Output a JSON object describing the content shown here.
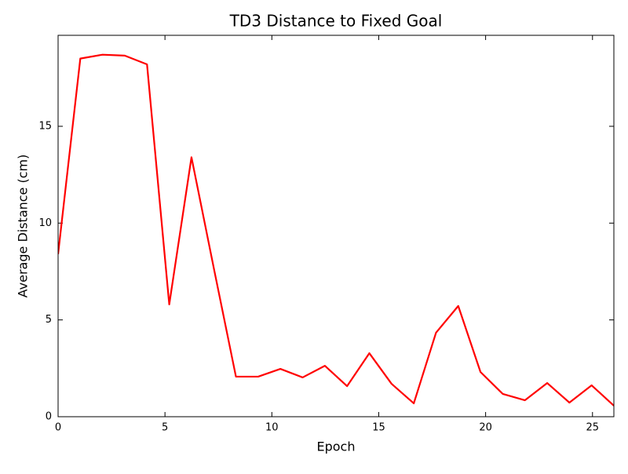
{
  "chart_data": {
    "type": "line",
    "title": "TD3 Distance to Fixed Goal",
    "xlabel": "Epoch",
    "ylabel": "Average Distance (cm)",
    "x": [
      0,
      1.04,
      2.08,
      3.12,
      4.16,
      5.2,
      6.24,
      7.28,
      8.32,
      9.36,
      10.4,
      11.44,
      12.48,
      13.52,
      14.56,
      15.6,
      16.64,
      17.68,
      18.72,
      19.76,
      20.8,
      21.84,
      22.88,
      23.92,
      24.96,
      26
    ],
    "series": [
      {
        "color": "#ff0000",
        "values": [
          8.4,
          18.5,
          18.7,
          18.65,
          18.2,
          5.8,
          13.4,
          7.7,
          2.07,
          2.07,
          2.47,
          2.03,
          2.63,
          1.58,
          3.28,
          1.7,
          0.69,
          4.34,
          5.72,
          2.31,
          1.18,
          0.85,
          1.74,
          0.73,
          1.62,
          0.57
        ]
      }
    ],
    "xlim": [
      0,
      26
    ],
    "xticks": [
      0,
      5,
      10,
      15,
      20,
      25
    ],
    "ylim": [
      0,
      19.7
    ],
    "yticks": [
      0,
      5,
      10,
      15
    ],
    "grid": false
  }
}
